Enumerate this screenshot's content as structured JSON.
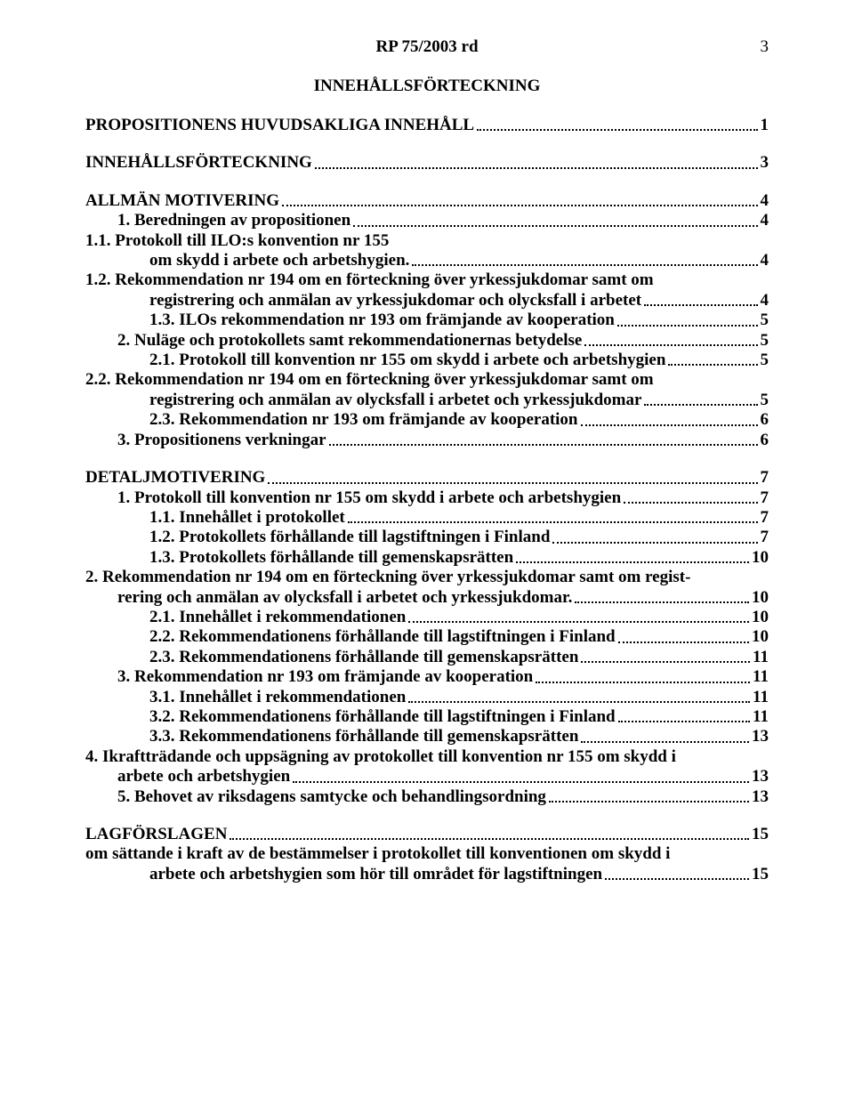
{
  "document": {
    "header": "RP 75/2003 rd",
    "page_number": "3",
    "toc_title": "INNEHÅLLSFÖRTECKNING",
    "font_family": "Times New Roman",
    "text_color": "#000000",
    "background_color": "#ffffff",
    "entry_fontsize": 19,
    "entries": [
      {
        "level": 0,
        "text": "PROPOSITIONENS HUVUDSAKLIGA INNEHÅLL",
        "page": "1"
      },
      {
        "level": 0,
        "text": "INNEHÅLLSFÖRTECKNING",
        "page": "3"
      },
      {
        "level": 0,
        "text": "ALLMÄN MOTIVERING",
        "page": "4"
      },
      {
        "level": 1,
        "text": "1. Beredningen av propositionen",
        "page": "4"
      },
      {
        "level": 2,
        "wrap": [
          "1.1. Protokoll till ILO:s konvention nr 155 om skydd i arbete och arbetshygien."
        ],
        "page": "4"
      },
      {
        "level": 2,
        "wrap": [
          "1.2. Rekommendation nr 194 om en förteckning över yrkessjukdomar samt om",
          "registrering och anmälan av yrkessjukdomar och olycksfall i arbetet"
        ],
        "page": "4"
      },
      {
        "level": 2,
        "text": "1.3. ILOs rekommendation nr 193 om främjande av kooperation",
        "page": "5"
      },
      {
        "level": 1,
        "text": "2. Nuläge och protokollets samt rekommendationernas betydelse",
        "page": "5"
      },
      {
        "level": 2,
        "text": "2.1. Protokoll till konvention nr 155 om skydd i arbete och arbetshygien",
        "page": "5"
      },
      {
        "level": 2,
        "wrap": [
          "2.2. Rekommendation nr 194 om en förteckning över yrkessjukdomar samt om",
          "registrering och anmälan av olycksfall i arbetet och yrkessjukdomar"
        ],
        "page": "5"
      },
      {
        "level": 2,
        "text": "2.3. Rekommendation nr 193 om främjande av kooperation",
        "page": "6"
      },
      {
        "level": 1,
        "text": "3. Propositionens verkningar",
        "page": "6"
      },
      {
        "level": 0,
        "text": "DETALJMOTIVERING",
        "page": "7"
      },
      {
        "level": 1,
        "text": "1. Protokoll till konvention nr 155 om skydd i arbete och arbetshygien",
        "page": "7"
      },
      {
        "level": 2,
        "text": "1.1. Innehållet i protokollet",
        "page": "7"
      },
      {
        "level": 2,
        "text": "1.2. Protokollets förhållande till lagstiftningen i Finland",
        "page": "7"
      },
      {
        "level": 2,
        "text": "1.3. Protokollets förhållande till gemenskapsrätten",
        "page": "10"
      },
      {
        "level": 1,
        "wrap": [
          "2. Rekommendation nr 194 om en förteckning över yrkessjukdomar samt om registrering och anmälan av olycksfall i arbetet och yrkessjukdomar."
        ],
        "page": "10",
        "wrap_lvl_first": 1,
        "wrap_lvl_rest": 1
      },
      {
        "level": 2,
        "text": "2.1. Innehållet i rekommendationen",
        "page": "10"
      },
      {
        "level": 2,
        "text": "2.2. Rekommendationens förhållande till lagstiftningen i Finland",
        "page": "10"
      },
      {
        "level": 2,
        "text": "2.3. Rekommendationens förhållande till gemenskapsrätten",
        "page": "11"
      },
      {
        "level": 1,
        "text": "3. Rekommendation nr 193 om främjande av kooperation",
        "page": "11"
      },
      {
        "level": 2,
        "text": "3.1. Innehållet i rekommendationen",
        "page": "11"
      },
      {
        "level": 2,
        "text": "3.2. Rekommendationens förhållande till lagstiftningen i Finland",
        "page": "11"
      },
      {
        "level": 2,
        "text": "3.3. Rekommendationens förhållande till gemenskapsrätten",
        "page": "13"
      },
      {
        "level": 1,
        "wrap": [
          "4. Ikraftträdande och uppsägning av protokollet till konvention nr 155 om skydd i",
          "arbete och arbetshygien"
        ],
        "page": "13"
      },
      {
        "level": 1,
        "text": "5. Behovet av riksdagens samtycke och behandlingsordning",
        "page": "13"
      },
      {
        "level": 0,
        "text": "LAGFÖRSLAGEN",
        "page": "15"
      },
      {
        "level": 2,
        "wrap": [
          "om sättande i kraft av de bestämmelser i protokollet till konventionen om skydd i",
          "arbete och arbetshygien som hör till området för lagstiftningen"
        ],
        "page": "15"
      }
    ]
  }
}
